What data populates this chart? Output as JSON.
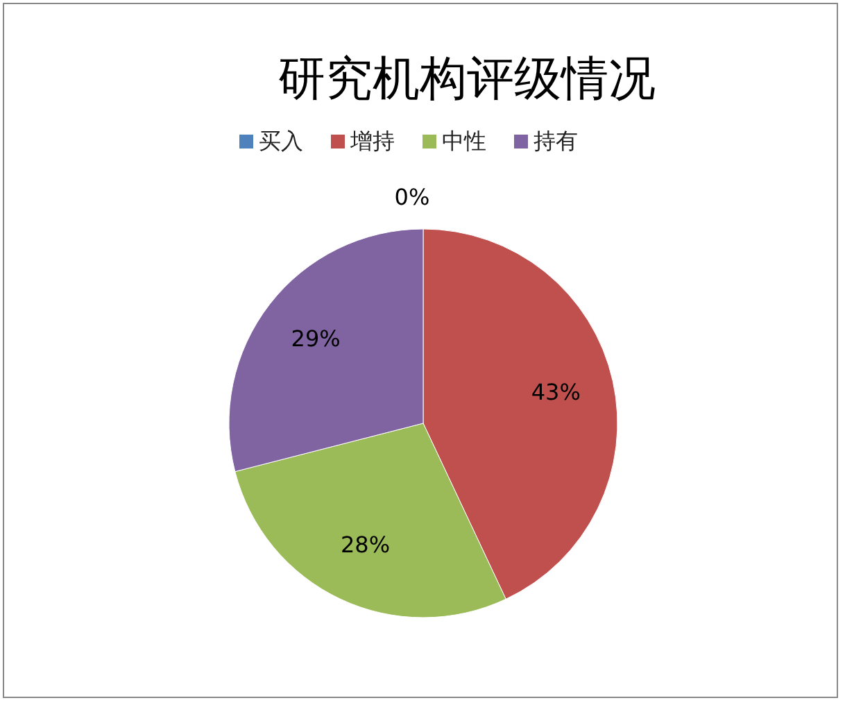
{
  "chart_data": {
    "type": "pie",
    "title": "研究机构评级情况",
    "categories": [
      "买入",
      "增持",
      "中性",
      "持有"
    ],
    "values": [
      0,
      43,
      28,
      29
    ],
    "colors": [
      "#4f81bd",
      "#c0504d",
      "#9bbb59",
      "#8064a2"
    ],
    "value_labels": [
      "0%",
      "43%",
      "28%",
      "29%"
    ],
    "legend": "top"
  }
}
